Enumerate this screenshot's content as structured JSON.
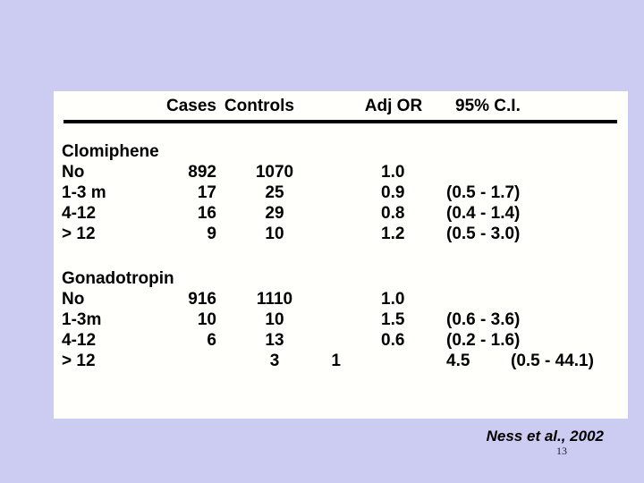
{
  "colors": {
    "background": "#ccccf2",
    "panel": "#fffffc",
    "text": "#000000",
    "rule": "#000000"
  },
  "table": {
    "headers": {
      "cases": "Cases",
      "controls": "Controls",
      "adj_or": "Adj OR",
      "ci": "95% C.I."
    },
    "rows": [
      {
        "label": "Clomiphene",
        "cases": "",
        "controls": "",
        "mid": "",
        "adj_or": "",
        "ci_lead": "",
        "ci": ""
      },
      {
        "label": "No",
        "cases": "892",
        "controls": "1070",
        "mid": "",
        "adj_or": "1.0",
        "ci_lead": "",
        "ci": ""
      },
      {
        "label": "1-3 m",
        "cases": "17",
        "controls": "25",
        "mid": "",
        "adj_or": "0.9",
        "ci_lead": "",
        "ci": "(0.5 - 1.7)"
      },
      {
        "label": "4-12",
        "cases": "16",
        "controls": "29",
        "mid": "",
        "adj_or": "0.8",
        "ci_lead": "",
        "ci": "(0.4 - 1.4)"
      },
      {
        "label": "> 12",
        "cases": "9",
        "controls": "10",
        "mid": "",
        "adj_or": "1.2",
        "ci_lead": "",
        "ci": "(0.5 - 3.0)"
      },
      {
        "label": "Gonadotropin",
        "cases": "",
        "controls": "",
        "mid": "",
        "adj_or": "",
        "ci_lead": "",
        "ci": ""
      },
      {
        "label": "No",
        "cases": "916",
        "controls": "1110",
        "mid": "",
        "adj_or": "1.0",
        "ci_lead": "",
        "ci": ""
      },
      {
        "label": "1-3m",
        "cases": "10",
        "controls": "10",
        "mid": "",
        "adj_or": "1.5",
        "ci_lead": "",
        "ci": "(0.6 - 3.6)"
      },
      {
        "label": "4-12",
        "cases": "6",
        "controls": "13",
        "mid": "",
        "adj_or": "0.6",
        "ci_lead": "",
        "ci": "(0.2 - 1.6)"
      },
      {
        "label": "> 12",
        "cases": "",
        "controls": "3",
        "mid": "1",
        "adj_or": "",
        "ci_lead": "4.5",
        "ci": "(0.5 - 44.1)"
      }
    ]
  },
  "footer": {
    "citation": "Ness et al., 2002",
    "page_number": "13"
  }
}
